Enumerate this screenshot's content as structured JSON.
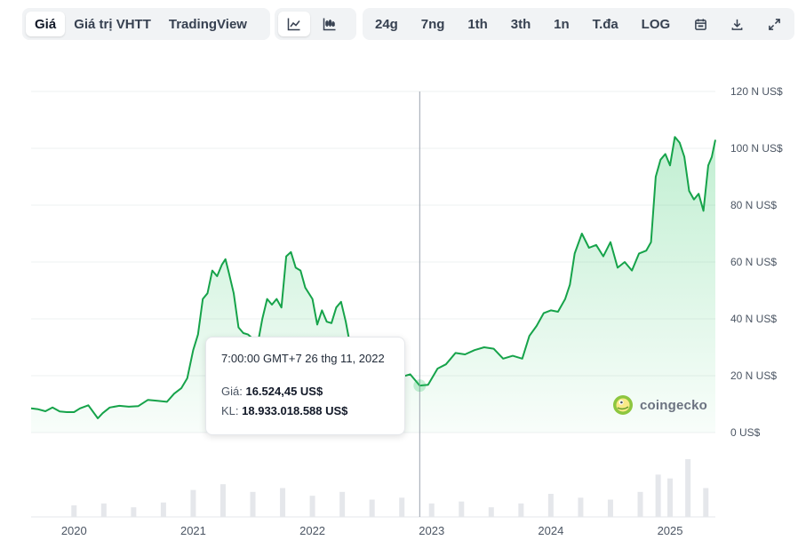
{
  "toolbar": {
    "view_tabs": [
      {
        "label": "Giá",
        "active": true
      },
      {
        "label": "Giá trị VHTT",
        "active": false
      },
      {
        "label": "TradingView",
        "active": false
      }
    ],
    "chart_type_icons": [
      {
        "icon": "line-chart-icon",
        "active": true
      },
      {
        "icon": "candlestick-chart-icon",
        "active": false
      }
    ],
    "ranges": [
      "24g",
      "7ng",
      "1th",
      "3th",
      "1n",
      "T.đa",
      "LOG"
    ],
    "action_icons": [
      "calendar-icon",
      "download-icon",
      "expand-icon"
    ]
  },
  "tooltip": {
    "time": "7:00:00 GMT+7 26 thg 11, 2022",
    "price_label": "Giá:",
    "price_value": "16.524,45 US$",
    "volume_label": "KL:",
    "volume_value": "18.933.018.588 US$"
  },
  "brand": {
    "name": "coingecko",
    "icon": "coingecko-logo"
  },
  "colors": {
    "line": "#16a34a",
    "fill": "#22c55e",
    "volume": "#e5e7eb",
    "crosshair": "#9ca3af"
  },
  "chart_data": {
    "type": "area",
    "title": "",
    "xlabel": "",
    "ylabel": "",
    "y_unit": "US$",
    "ylim": [
      0,
      120000
    ],
    "y_ticks": [
      {
        "value": 0,
        "label": "0 US$"
      },
      {
        "value": 20000,
        "label": "20 N US$"
      },
      {
        "value": 40000,
        "label": "40 N US$"
      },
      {
        "value": 60000,
        "label": "60 N US$"
      },
      {
        "value": 80000,
        "label": "80 N US$"
      },
      {
        "value": 100000,
        "label": "100 N US$"
      },
      {
        "value": 120000,
        "label": "120 N US$"
      }
    ],
    "x_ticks": [
      {
        "value": 2020.0,
        "label": "2020"
      },
      {
        "value": 2021.0,
        "label": "2021"
      },
      {
        "value": 2022.0,
        "label": "2022"
      },
      {
        "value": 2023.0,
        "label": "2023"
      },
      {
        "value": 2024.0,
        "label": "2024"
      },
      {
        "value": 2025.0,
        "label": "2025"
      }
    ],
    "xlim": [
      2019.64,
      2025.38
    ],
    "highlight": {
      "x": 2022.9,
      "y": 16524.45
    },
    "series": [
      {
        "x": [
          2019.64,
          2019.7,
          2019.76,
          2019.82,
          2019.88,
          2019.94,
          2020.0,
          2020.05,
          2020.12,
          2020.2,
          2020.24,
          2020.3,
          2020.38,
          2020.46,
          2020.54,
          2020.62,
          2020.7,
          2020.78,
          2020.84,
          2020.9,
          2020.95,
          2021.0,
          2021.04,
          2021.08,
          2021.12,
          2021.16,
          2021.2,
          2021.24,
          2021.27,
          2021.3,
          2021.34,
          2021.38,
          2021.42,
          2021.46,
          2021.5,
          2021.54,
          2021.58,
          2021.62,
          2021.66,
          2021.7,
          2021.74,
          2021.78,
          2021.82,
          2021.86,
          2021.9,
          2021.94,
          2022.0,
          2022.04,
          2022.08,
          2022.12,
          2022.16,
          2022.2,
          2022.24,
          2022.28,
          2022.32,
          2022.36,
          2022.4,
          2022.45,
          2022.5,
          2022.58,
          2022.66,
          2022.74,
          2022.82,
          2022.9,
          2022.97,
          2023.05,
          2023.12,
          2023.2,
          2023.28,
          2023.36,
          2023.44,
          2023.52,
          2023.6,
          2023.68,
          2023.76,
          2023.82,
          2023.88,
          2023.94,
          2024.0,
          2024.06,
          2024.12,
          2024.16,
          2024.2,
          2024.26,
          2024.32,
          2024.38,
          2024.44,
          2024.5,
          2024.56,
          2024.62,
          2024.68,
          2024.74,
          2024.8,
          2024.84,
          2024.88,
          2024.92,
          2024.96,
          2025.0,
          2025.04,
          2025.08,
          2025.12,
          2025.16,
          2025.2,
          2025.24,
          2025.28,
          2025.32,
          2025.35,
          2025.38
        ],
        "y": [
          8500,
          8200,
          7500,
          8800,
          7400,
          7200,
          7200,
          8500,
          9600,
          5000,
          6800,
          8800,
          9400,
          9100,
          9300,
          11500,
          11200,
          10800,
          13700,
          15600,
          19100,
          29000,
          34500,
          47000,
          49000,
          57000,
          55000,
          59000,
          61000,
          56000,
          49000,
          37000,
          35000,
          34500,
          33000,
          31000,
          40000,
          47000,
          45000,
          47000,
          44000,
          62000,
          63500,
          58000,
          57000,
          51000,
          47000,
          38000,
          43000,
          39000,
          38500,
          44000,
          46000,
          39000,
          30000,
          29500,
          21000,
          20000,
          21000,
          23000,
          20000,
          19500,
          20500,
          16524.45,
          16800,
          22500,
          24000,
          28000,
          27500,
          29000,
          30000,
          29500,
          26000,
          27000,
          26000,
          34000,
          37500,
          42000,
          43000,
          42500,
          47000,
          52000,
          63000,
          70000,
          65000,
          66000,
          62000,
          67000,
          58000,
          60000,
          57000,
          63000,
          64000,
          67000,
          90000,
          96000,
          98000,
          94000,
          104000,
          102000,
          97000,
          85000,
          82000,
          84000,
          78000,
          94000,
          97000,
          103000
        ]
      }
    ],
    "volume": {
      "x": [
        2020.0,
        2020.25,
        2020.5,
        2020.75,
        2021.0,
        2021.25,
        2021.5,
        2021.75,
        2022.0,
        2022.25,
        2022.5,
        2022.75,
        2023.0,
        2023.25,
        2023.5,
        2023.75,
        2024.0,
        2024.25,
        2024.5,
        2024.75,
        2024.9,
        2025.0,
        2025.15,
        2025.3
      ],
      "values": [
        12,
        14,
        10,
        15,
        28,
        34,
        26,
        30,
        22,
        26,
        18,
        20,
        14,
        16,
        10,
        14,
        24,
        20,
        18,
        26,
        44,
        40,
        60,
        30
      ]
    }
  }
}
